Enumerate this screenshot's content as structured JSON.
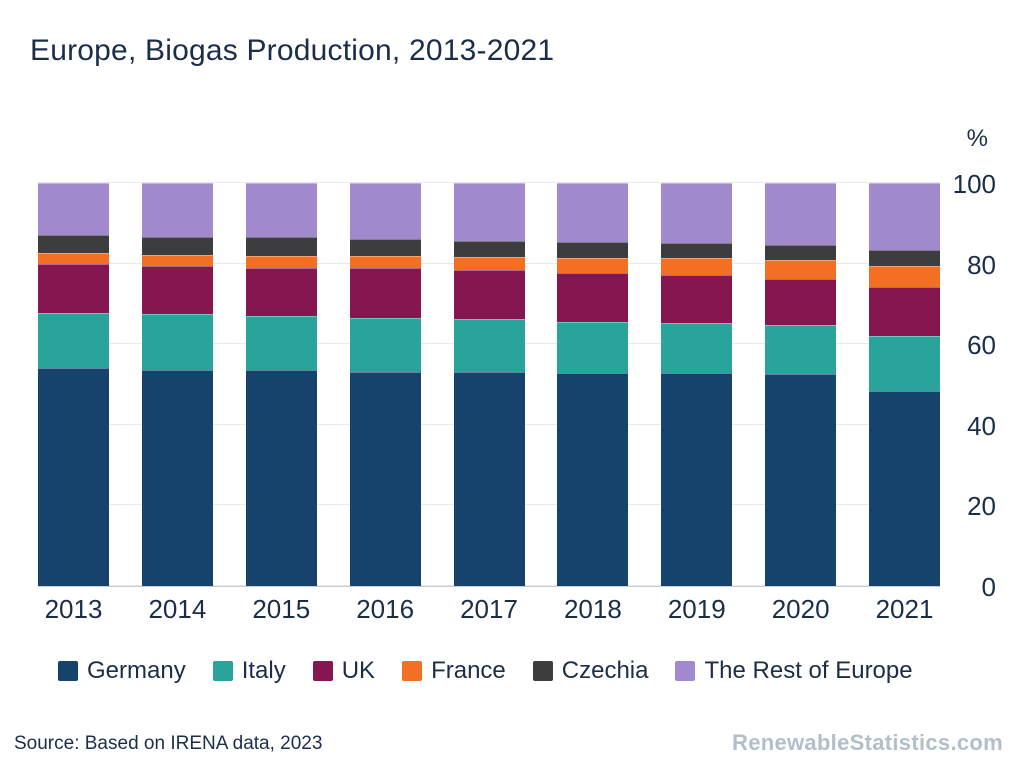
{
  "title": "Europe, Biogas Production, 2013-2021",
  "footer": {
    "source": "Source: Based on IRENA data, 2023",
    "branding": "RenewableStatistics.com"
  },
  "colors": {
    "text": "#1a2e4a",
    "gridline": "#e6e9f0",
    "baseline": "#c7cbd4",
    "branding_text": "#b2bec9"
  },
  "chart_data": {
    "type": "bar",
    "stacked": true,
    "percent_stacked": true,
    "title": "Europe, Biogas Production, 2013-2021",
    "xlabel": "",
    "ylabel": "%",
    "ylim": [
      0,
      100
    ],
    "yticks": [
      0,
      20,
      40,
      60,
      80,
      100
    ],
    "grid": true,
    "legend_position": "bottom",
    "categories": [
      "2013",
      "2014",
      "2015",
      "2016",
      "2017",
      "2018",
      "2019",
      "2020",
      "2021"
    ],
    "series": [
      {
        "name": "Germany",
        "color": "#15436b",
        "values": [
          54.0,
          53.5,
          53.5,
          53.2,
          53.0,
          52.8,
          52.8,
          52.6,
          48.5
        ]
      },
      {
        "name": "Italy",
        "color": "#2aa49a",
        "values": [
          13.8,
          14.0,
          13.5,
          13.4,
          13.2,
          12.8,
          12.5,
          12.2,
          13.6
        ]
      },
      {
        "name": "UK",
        "color": "#85164f",
        "values": [
          12.0,
          11.9,
          12.0,
          12.2,
          12.2,
          12.0,
          11.8,
          11.5,
          12.2
        ]
      },
      {
        "name": "France",
        "color": "#f26f23",
        "values": [
          2.8,
          2.7,
          3.0,
          3.0,
          3.3,
          3.7,
          4.2,
          4.6,
          5.2
        ]
      },
      {
        "name": "Czechia",
        "color": "#3d3d3f",
        "values": [
          4.4,
          4.5,
          4.5,
          4.2,
          4.0,
          4.1,
          3.9,
          3.7,
          3.9
        ]
      },
      {
        "name": "The Rest of Europe",
        "color": "#a189ce",
        "values": [
          13.0,
          13.4,
          13.5,
          14.0,
          14.3,
          14.6,
          14.8,
          15.4,
          16.6
        ]
      }
    ]
  }
}
